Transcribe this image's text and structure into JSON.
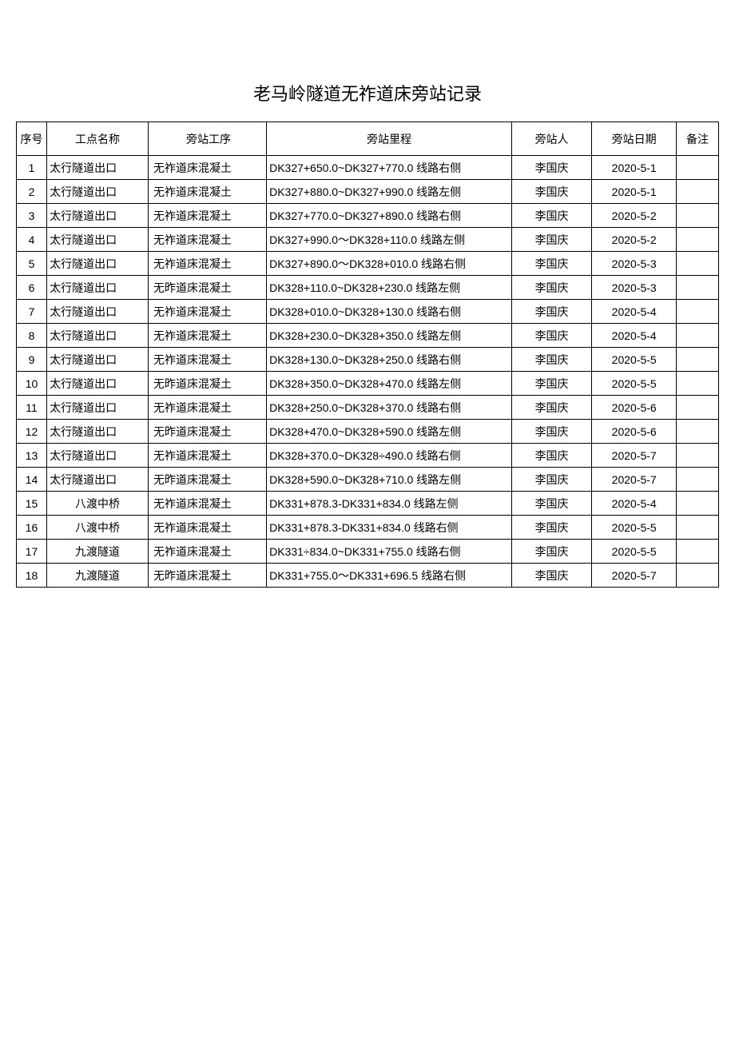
{
  "title": "老马岭隧道无祚道床旁站记录",
  "table": {
    "headers": {
      "seq": "序号",
      "location": "工点名称",
      "process": "旁站工序",
      "mileage": "旁站里程",
      "person": "旁站人",
      "date": "旁站日期",
      "remark": "备注"
    },
    "rows": [
      {
        "seq": "1",
        "location": "太行隧道出口",
        "loc_centered": false,
        "process": "无祚道床混凝土",
        "mileage": "DK327+650.0~DK327+770.0 线路右侧",
        "person": "李国庆",
        "date": "2020-5-1",
        "remark": ""
      },
      {
        "seq": "2",
        "location": "太行隧道出口",
        "loc_centered": false,
        "process": "无祚道床混凝土",
        "mileage": "DK327+880.0~DK327+990.0 线路左侧",
        "person": "李国庆",
        "date": "2020-5-1",
        "remark": ""
      },
      {
        "seq": "3",
        "location": "太行隧道出口",
        "loc_centered": false,
        "process": "无祚道床混凝土",
        "mileage": "DK327+770.0~DK327+890.0 线路右侧",
        "person": "李国庆",
        "date": "2020-5-2",
        "remark": ""
      },
      {
        "seq": "4",
        "location": "太行隧道出口",
        "loc_centered": false,
        "process": "无祚道床混凝土",
        "mileage": "DK327+990.0～DK328+110.0 线路左侧",
        "person": "李国庆",
        "date": "2020-5-2",
        "remark": ""
      },
      {
        "seq": "5",
        "location": "太行隧道出口",
        "loc_centered": false,
        "process": "无祚道床混凝土",
        "mileage": "DK327+890.0～DK328+010.0 线路右侧",
        "person": "李国庆",
        "date": "2020-5-3",
        "remark": ""
      },
      {
        "seq": "6",
        "location": "太行隧道出口",
        "loc_centered": false,
        "process": "无昨道床混凝土",
        "mileage": "DK328+110.0~DK328+230.0 线路左侧",
        "person": "李国庆",
        "date": "2020-5-3",
        "remark": ""
      },
      {
        "seq": "7",
        "location": "太行隧道出口",
        "loc_centered": false,
        "process": "无祚道床混凝土",
        "mileage": "DK328+010.0~DK328+130.0 线路右侧",
        "person": "李国庆",
        "date": "2020-5-4",
        "remark": ""
      },
      {
        "seq": "8",
        "location": "太行隧道出口",
        "loc_centered": false,
        "process": "无祚道床混凝土",
        "mileage": "DK328+230.0~DK328+350.0 线路左侧",
        "person": "李国庆",
        "date": "2020-5-4",
        "remark": ""
      },
      {
        "seq": "9",
        "location": "太行隧道出口",
        "loc_centered": false,
        "process": "无祚道床混凝土",
        "mileage": "DK328+130.0~DK328+250.0 线路右侧",
        "person": "李国庆",
        "date": "2020-5-5",
        "remark": ""
      },
      {
        "seq": "10",
        "location": "太行隧道出口",
        "loc_centered": false,
        "process": "无昨道床混凝土",
        "mileage": "DK328+350.0~DK328+470.0 线路左侧",
        "person": "李国庆",
        "date": "2020-5-5",
        "remark": ""
      },
      {
        "seq": "11",
        "location": "太行隧道出口",
        "loc_centered": false,
        "process": "无祚道床混凝土",
        "mileage": "DK328+250.0~DK328+370.0 线路右侧",
        "person": "李国庆",
        "date": "2020-5-6",
        "remark": ""
      },
      {
        "seq": "12",
        "location": "太行隧道出口",
        "loc_centered": false,
        "process": "无昨道床混凝土",
        "mileage": "DK328+470.0~DK328+590.0 线路左侧",
        "person": "李国庆",
        "date": "2020-5-6",
        "remark": ""
      },
      {
        "seq": "13",
        "location": "太行隧道出口",
        "loc_centered": false,
        "process": "无祚道床混凝土",
        "mileage": "DK328+370.0~DK328÷490.0 线路右侧",
        "person": "李国庆",
        "date": "2020-5-7",
        "remark": ""
      },
      {
        "seq": "14",
        "location": "太行隧道出口",
        "loc_centered": false,
        "process": "无昨道床混凝土",
        "mileage": "DK328+590.0~DK328+710.0 线路左侧",
        "person": "李国庆",
        "date": "2020-5-7",
        "remark": ""
      },
      {
        "seq": "15",
        "location": "八渡中桥",
        "loc_centered": true,
        "process": "无祚道床混凝土",
        "mileage": "DK331+878.3-DK331+834.0 线路左侧",
        "person": "李国庆",
        "date": "2020-5-4",
        "remark": ""
      },
      {
        "seq": "16",
        "location": "八渡中桥",
        "loc_centered": true,
        "process": "无祚道床混凝土",
        "mileage": "DK331+878.3-DK331+834.0 线路右侧",
        "person": "李国庆",
        "date": "2020-5-5",
        "remark": ""
      },
      {
        "seq": "17",
        "location": "九渡隧道",
        "loc_centered": true,
        "process": "无祚道床混凝土",
        "mileage": "DK331÷834.0~DK331+755.0 线路右侧",
        "person": "李国庆",
        "date": "2020-5-5",
        "remark": ""
      },
      {
        "seq": "18",
        "location": "九渡隧道",
        "loc_centered": true,
        "process": "无昨道床混凝土",
        "mileage": "DK331+755.0～DK331+696.5 线路右侧",
        "person": "李国庆",
        "date": "2020-5-7",
        "remark": ""
      }
    ]
  }
}
